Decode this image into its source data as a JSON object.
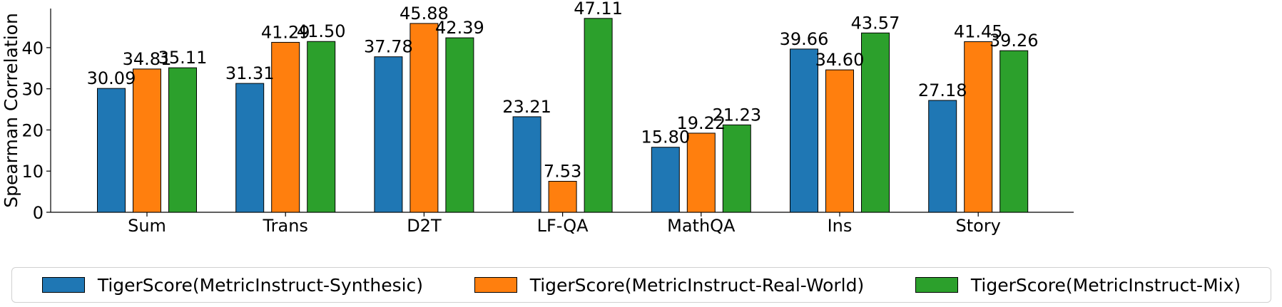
{
  "chart_data": {
    "type": "bar",
    "title": "",
    "xlabel": "",
    "ylabel": "Spearman Correlation",
    "ylim": [
      0,
      49.5
    ],
    "yticks": [
      0,
      10,
      20,
      30,
      40
    ],
    "categories": [
      "Sum",
      "Trans",
      "D2T",
      "LF-QA",
      "MathQA",
      "Ins",
      "Story"
    ],
    "series": [
      {
        "name": "TigerScore(MetricInstruct-Synthesic)",
        "color": "#1f77b4",
        "values": [
          30.09,
          31.31,
          37.78,
          23.21,
          15.8,
          39.66,
          27.18
        ]
      },
      {
        "name": "TigerScore(MetricInstruct-Real-World)",
        "color": "#ff7f0e",
        "values": [
          34.81,
          41.29,
          45.88,
          7.53,
          19.22,
          34.6,
          41.45
        ]
      },
      {
        "name": "TigerScore(MetricInstruct-Mix)",
        "color": "#2ca02c",
        "values": [
          35.11,
          41.5,
          42.39,
          47.11,
          21.23,
          43.57,
          39.26
        ]
      }
    ],
    "data_labels": true,
    "grid": false,
    "legend_position": "bottom"
  }
}
